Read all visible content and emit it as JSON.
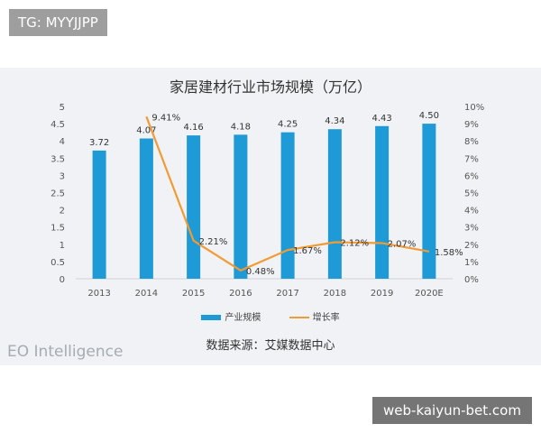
{
  "top_tag": "TG: MYYJJPP",
  "bottom_tag": "web-kaiyun-bet.com",
  "watermark": "EO Intelligence",
  "source": "数据来源：艾媒数据中心",
  "colors": {
    "bar": "#1e9ad6",
    "line": "#f29a33",
    "panel_bg": "#f0f2f5"
  },
  "chart_data": {
    "type": "bar",
    "title": "家居建材行业市场规模（万亿）",
    "categories": [
      "2013",
      "2014",
      "2015",
      "2016",
      "2017",
      "2018",
      "2019",
      "2020E"
    ],
    "series": [
      {
        "name": "产业规模",
        "type": "bar",
        "axis": "left",
        "values": [
          3.72,
          4.07,
          4.16,
          4.18,
          4.25,
          4.34,
          4.43,
          4.5
        ],
        "labels": [
          "3.72",
          "4.07",
          "4.16",
          "4.18",
          "4.25",
          "4.34",
          "4.43",
          "4.50"
        ]
      },
      {
        "name": "增长率",
        "type": "line",
        "axis": "right",
        "values": [
          null,
          9.41,
          2.21,
          0.48,
          1.67,
          2.12,
          2.07,
          1.58
        ],
        "labels": [
          "",
          "9.41%",
          "2.21%",
          "0.48%",
          "1.67%",
          "2.12%",
          "2.07%",
          "1.58%"
        ]
      }
    ],
    "y_left": {
      "min": 0,
      "max": 5,
      "ticks": [
        "0",
        "0.5",
        "1",
        "1.5",
        "2",
        "2.5",
        "3",
        "3.5",
        "4",
        "4.5",
        "5"
      ]
    },
    "y_right": {
      "min": 0,
      "max": 10,
      "ticks": [
        "0%",
        "1%",
        "2%",
        "3%",
        "4%",
        "5%",
        "6%",
        "7%",
        "8%",
        "9%",
        "10%"
      ]
    },
    "legend_position": "bottom",
    "grid": false
  }
}
